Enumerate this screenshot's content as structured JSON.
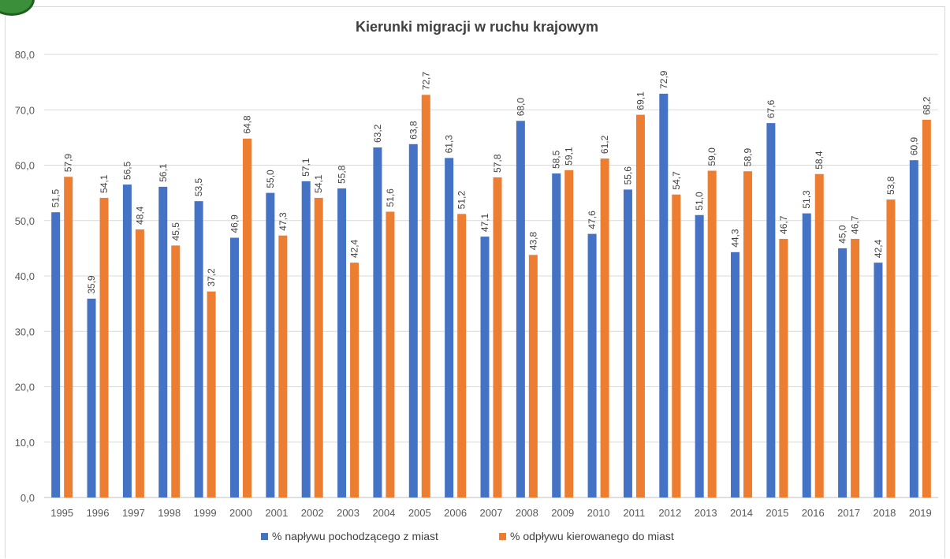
{
  "chart_data": {
    "type": "bar",
    "title": "Kierunki migracji w ruchu krajowym",
    "xlabel": "",
    "ylabel": "",
    "ylim": [
      0,
      80
    ],
    "yticks": [
      "0,0",
      "10,0",
      "20,0",
      "30,0",
      "40,0",
      "50,0",
      "60,0",
      "70,0",
      "80,0"
    ],
    "grid": true,
    "legend_position": "bottom",
    "categories": [
      "1995",
      "1996",
      "1997",
      "1998",
      "1999",
      "2000",
      "2001",
      "2002",
      "2003",
      "2004",
      "2005",
      "2006",
      "2007",
      "2008",
      "2009",
      "2010",
      "2011",
      "2012",
      "2013",
      "2014",
      "2015",
      "2016",
      "2017",
      "2018",
      "2019"
    ],
    "series": [
      {
        "name": "% napływu pochodzącego z miast",
        "color": "#4472c4",
        "values": [
          51.5,
          35.9,
          56.5,
          56.1,
          53.5,
          46.9,
          55.0,
          57.1,
          55.8,
          63.2,
          63.8,
          61.3,
          47.1,
          68.0,
          58.5,
          47.6,
          55.6,
          72.9,
          51.0,
          44.3,
          67.6,
          51.3,
          45.0,
          42.4,
          60.9
        ],
        "labels": [
          "51,5",
          "35,9",
          "56,5",
          "56,1",
          "53,5",
          "46,9",
          "55,0",
          "57,1",
          "55,8",
          "63,2",
          "63,8",
          "61,3",
          "47,1",
          "68,0",
          "58,5",
          "47,6",
          "55,6",
          "72,9",
          "51,0",
          "44,3",
          "67,6",
          "51,3",
          "45,0",
          "42,4",
          "60,9"
        ]
      },
      {
        "name": "% odpływu kierowanego do miast",
        "color": "#ed7d31",
        "values": [
          57.9,
          54.1,
          48.4,
          45.5,
          37.2,
          64.8,
          47.3,
          54.1,
          42.4,
          51.6,
          72.7,
          51.2,
          57.8,
          43.8,
          59.1,
          61.2,
          69.1,
          54.7,
          59.0,
          58.9,
          46.7,
          58.4,
          46.7,
          53.8,
          68.2
        ],
        "labels": [
          "57,9",
          "54,1",
          "48,4",
          "45,5",
          "37,2",
          "64,8",
          "47,3",
          "54,1",
          "42,4",
          "51,6",
          "72,7",
          "51,2",
          "57,8",
          "43,8",
          "59,1",
          "61,2",
          "69,1",
          "54,7",
          "59,0",
          "58,9",
          "46,7",
          "58,4",
          "46,7",
          "53,8",
          "68,2"
        ]
      }
    ]
  }
}
